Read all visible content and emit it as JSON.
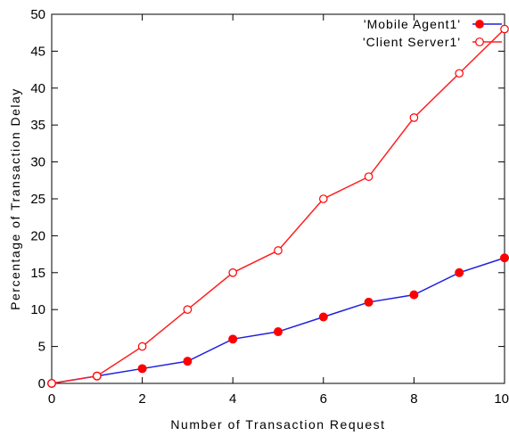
{
  "chart_data": {
    "type": "line",
    "xlabel": "Number of Transaction Request",
    "ylabel": "Percentage of Transaction Delay",
    "xlim": [
      0,
      10
    ],
    "ylim": [
      0,
      50
    ],
    "x_ticks": [
      "0",
      "2",
      "4",
      "6",
      "8",
      "10"
    ],
    "y_ticks": [
      "0",
      "5",
      "10",
      "15",
      "20",
      "25",
      "30",
      "35",
      "40",
      "45",
      "50"
    ],
    "grid": false,
    "legend_position": "top-right",
    "x": [
      0,
      1,
      2,
      3,
      4,
      5,
      6,
      7,
      8,
      9,
      10
    ],
    "series": [
      {
        "name": "'Mobile Agent1'",
        "color": "#1f1fe0",
        "marker_color": "#ff0000",
        "marker": "filled-circle",
        "values": [
          0,
          1,
          2,
          3,
          6,
          7,
          9,
          11,
          12,
          15,
          17
        ]
      },
      {
        "name": "'Client Server1'",
        "color": "#ff2020",
        "marker_color": "#ff0000",
        "marker": "open-circle",
        "values": [
          0,
          1,
          5,
          10,
          15,
          18,
          25,
          28,
          36,
          42,
          48
        ]
      }
    ]
  }
}
